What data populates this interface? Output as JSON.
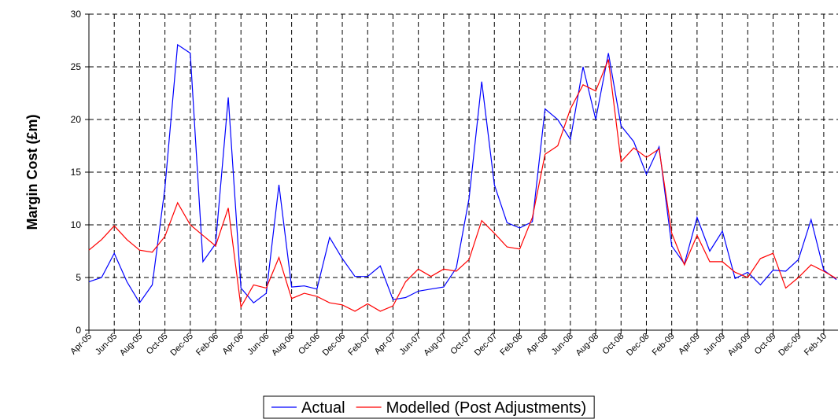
{
  "chart_data": {
    "type": "line",
    "y_label": "Margin Cost (£m)",
    "categories": [
      "Apr-05",
      null,
      "Jun-05",
      null,
      "Aug-05",
      null,
      "Oct-05",
      null,
      "Dec-05",
      null,
      "Feb-06",
      null,
      "Apr-06",
      null,
      "Jun-06",
      null,
      "Aug-06",
      null,
      "Oct-06",
      null,
      "Dec-06",
      null,
      "Feb-07",
      null,
      "Apr-07",
      null,
      "Jun-07",
      null,
      "Aug-07",
      null,
      "Oct-07",
      null,
      "Dec-07",
      null,
      "Feb-08",
      null,
      "Apr-08",
      null,
      "Jun-08",
      null,
      "Aug-08",
      null,
      "Oct-08",
      null,
      "Dec-08",
      null,
      "Feb-09",
      null,
      "Apr-09",
      null,
      "Jun-09",
      null,
      "Aug-09",
      null,
      "Oct-09",
      null,
      "Dec-09",
      null,
      "Feb-10",
      null
    ],
    "series": [
      {
        "name": "Actual",
        "color": "#0000ff",
        "values": [
          4.6,
          5.0,
          7.3,
          4.6,
          2.6,
          4.3,
          13.5,
          27.1,
          26.3,
          6.5,
          8.2,
          22.1,
          4.0,
          2.6,
          3.5,
          13.8,
          4.1,
          4.2,
          3.9,
          8.8,
          6.8,
          5.1,
          5.1,
          6.1,
          2.9,
          3.1,
          3.7,
          3.9,
          4.1,
          5.9,
          12.5,
          23.6,
          13.8,
          10.2,
          9.7,
          10.3,
          21.0,
          20.0,
          18.1,
          25.0,
          20.0,
          26.3,
          19.4,
          17.9,
          14.8,
          17.4,
          8.0,
          6.3,
          10.7,
          7.5,
          9.4,
          4.9,
          5.5,
          4.3,
          5.7,
          5.6,
          6.7,
          10.5,
          5.7,
          4.8
        ]
      },
      {
        "name": "Modelled (Post Adjustments)",
        "color": "#ff0000",
        "values": [
          7.6,
          8.6,
          9.9,
          8.6,
          7.6,
          7.4,
          8.9,
          12.1,
          10.0,
          9.0,
          8.0,
          11.6,
          2.2,
          4.3,
          4.0,
          6.9,
          3.0,
          3.5,
          3.2,
          2.6,
          2.4,
          1.8,
          2.5,
          1.8,
          2.3,
          4.6,
          5.8,
          5.1,
          5.8,
          5.6,
          6.7,
          10.4,
          9.2,
          7.9,
          7.7,
          10.7,
          16.7,
          17.5,
          21.0,
          23.3,
          22.7,
          25.7,
          16.0,
          17.3,
          16.4,
          17.2,
          9.2,
          6.2,
          9.0,
          6.5,
          6.5,
          5.5,
          5.0,
          6.8,
          7.3,
          4.0,
          5.0,
          6.2,
          5.6,
          4.9
        ]
      }
    ],
    "ylim": [
      0,
      30
    ],
    "yticks": [
      0,
      5,
      10,
      15,
      20,
      25,
      30
    ],
    "grid": true,
    "legend": "bottom"
  }
}
